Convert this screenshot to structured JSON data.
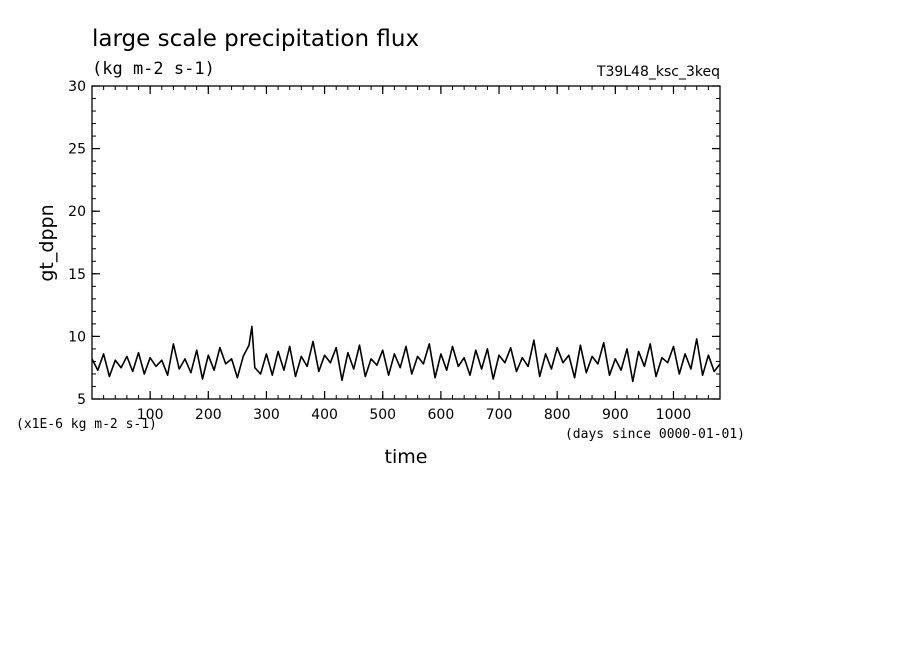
{
  "header": {
    "title": "large scale precipitation flux",
    "units": "(kg m-2 s-1)",
    "run_id": "T39L48_ksc_3keq"
  },
  "axes": {
    "xlabel": "time",
    "ylabel": "gt_dppn",
    "x_units_note": "(days since 0000-01-01)",
    "y_scale_note": "(x1E-6 kg m-2 s-1)"
  },
  "chart_data": {
    "type": "line",
    "title": "large scale precipitation flux",
    "xlabel": "time",
    "ylabel": "gt_dppn",
    "xlim": [
      0,
      1080
    ],
    "ylim": [
      5,
      30
    ],
    "x_ticks": [
      100,
      200,
      300,
      400,
      500,
      600,
      700,
      800,
      900,
      1000
    ],
    "y_ticks": [
      5,
      10,
      15,
      20,
      25,
      30
    ],
    "grid": false,
    "series": [
      {
        "x": [
          0,
          10,
          20,
          30,
          40,
          50,
          60,
          70,
          80,
          90,
          100,
          110,
          120,
          130,
          140,
          150,
          160,
          170,
          180,
          190,
          200,
          210,
          220,
          230,
          240,
          250,
          260,
          270,
          275,
          280,
          290,
          300,
          310,
          320,
          330,
          340,
          350,
          360,
          370,
          380,
          390,
          400,
          410,
          420,
          430,
          440,
          450,
          460,
          470,
          480,
          490,
          500,
          510,
          520,
          530,
          540,
          550,
          560,
          570,
          580,
          590,
          600,
          610,
          620,
          630,
          640,
          650,
          660,
          670,
          680,
          690,
          700,
          710,
          720,
          730,
          740,
          750,
          760,
          770,
          780,
          790,
          800,
          810,
          820,
          830,
          840,
          850,
          860,
          870,
          880,
          890,
          900,
          910,
          920,
          930,
          940,
          950,
          960,
          970,
          980,
          990,
          1000,
          1010,
          1020,
          1030,
          1040,
          1050,
          1060,
          1070,
          1080
        ],
        "values": [
          8.2,
          7.3,
          8.6,
          6.8,
          8.1,
          7.5,
          8.4,
          7.2,
          8.7,
          7.0,
          8.3,
          7.6,
          8.1,
          6.9,
          9.4,
          7.4,
          8.2,
          7.1,
          8.9,
          6.6,
          8.5,
          7.3,
          9.1,
          7.8,
          8.2,
          6.7,
          8.4,
          9.3,
          10.8,
          7.5,
          7.0,
          8.6,
          6.9,
          8.8,
          7.3,
          9.2,
          6.8,
          8.4,
          7.6,
          9.6,
          7.2,
          8.5,
          7.9,
          9.1,
          6.5,
          8.7,
          7.4,
          9.3,
          6.8,
          8.2,
          7.7,
          8.9,
          6.9,
          8.6,
          7.5,
          9.2,
          7.0,
          8.4,
          7.8,
          9.4,
          6.7,
          8.6,
          7.3,
          9.2,
          7.6,
          8.3,
          6.9,
          8.9,
          7.4,
          9.0,
          6.6,
          8.5,
          7.9,
          9.1,
          7.2,
          8.3,
          7.6,
          9.7,
          6.8,
          8.6,
          7.4,
          9.1,
          7.9,
          8.5,
          6.7,
          9.3,
          7.1,
          8.4,
          7.8,
          9.5,
          6.9,
          8.2,
          7.3,
          9.0,
          6.4,
          8.8,
          7.6,
          9.4,
          6.8,
          8.3,
          7.9,
          9.2,
          7.0,
          8.6,
          7.4,
          9.8,
          6.9,
          8.5,
          7.2,
          7.8
        ]
      }
    ]
  }
}
